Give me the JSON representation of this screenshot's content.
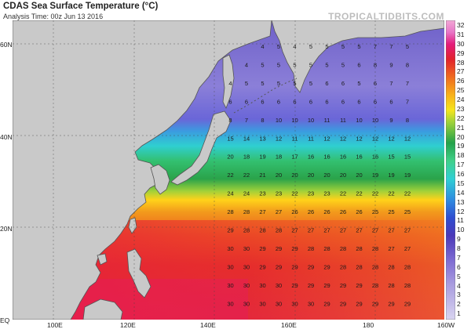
{
  "header": {
    "title": "CDAS Sea Surface Temperature (°C)",
    "subtitle": "Analysis Time: 00z Jun 13 2016",
    "brand": "TROPICALTIDBITS.COM"
  },
  "axes": {
    "lat_labels": [
      "60N",
      "40N",
      "20N",
      "EQ"
    ],
    "lon_labels": [
      "100E",
      "120E",
      "140E",
      "160E",
      "180",
      "160W"
    ]
  },
  "colorbar": {
    "ticks": [
      "32",
      "31",
      "30",
      "29",
      "28",
      "27",
      "26",
      "25",
      "24",
      "23",
      "22",
      "21",
      "20",
      "19",
      "18",
      "17",
      "16",
      "15",
      "14",
      "13",
      "12",
      "11",
      "10",
      "9",
      "8",
      "7",
      "6",
      "5",
      "4",
      "3",
      "2",
      "1"
    ]
  },
  "colors": {
    "land": "#c9c9c9",
    "coast": "#555555",
    "cold": "#6a5ec6",
    "warm": "#e0203a"
  },
  "sst_grid": {
    "lat_start": 59,
    "lat_step": -4,
    "lon_start": 144,
    "lon_step": 4,
    "rows": [
      [
        0,
        0,
        4,
        5,
        4,
        5,
        5,
        5,
        5,
        7,
        7,
        5
      ],
      [
        0,
        4,
        5,
        5,
        5,
        5,
        5,
        5,
        6,
        8,
        9,
        8
      ],
      [
        4,
        5,
        5,
        5,
        5,
        5,
        6,
        6,
        5,
        6,
        7,
        7
      ],
      [
        6,
        6,
        6,
        6,
        6,
        6,
        6,
        6,
        6,
        6,
        6,
        7
      ],
      [
        8,
        7,
        8,
        10,
        10,
        10,
        11,
        11,
        10,
        10,
        9,
        8
      ],
      [
        15,
        14,
        13,
        12,
        11,
        11,
        12,
        12,
        12,
        12,
        12,
        12
      ],
      [
        20,
        18,
        19,
        18,
        17,
        16,
        16,
        16,
        16,
        16,
        15,
        15
      ],
      [
        22,
        22,
        21,
        20,
        20,
        20,
        20,
        20,
        20,
        19,
        19,
        19
      ],
      [
        24,
        24,
        23,
        23,
        22,
        23,
        23,
        22,
        22,
        22,
        22,
        22
      ],
      [
        28,
        28,
        27,
        27,
        26,
        26,
        26,
        26,
        26,
        25,
        25,
        25
      ],
      [
        29,
        28,
        28,
        28,
        27,
        27,
        27,
        27,
        27,
        27,
        27,
        27
      ],
      [
        30,
        30,
        29,
        29,
        29,
        28,
        28,
        28,
        28,
        28,
        27,
        27
      ],
      [
        30,
        30,
        29,
        29,
        29,
        29,
        29,
        28,
        28,
        28,
        28,
        28
      ],
      [
        30,
        30,
        30,
        30,
        29,
        29,
        29,
        29,
        29,
        28,
        28,
        28
      ],
      [
        30,
        30,
        30,
        30,
        30,
        30,
        29,
        29,
        29,
        29,
        29,
        29
      ]
    ]
  }
}
